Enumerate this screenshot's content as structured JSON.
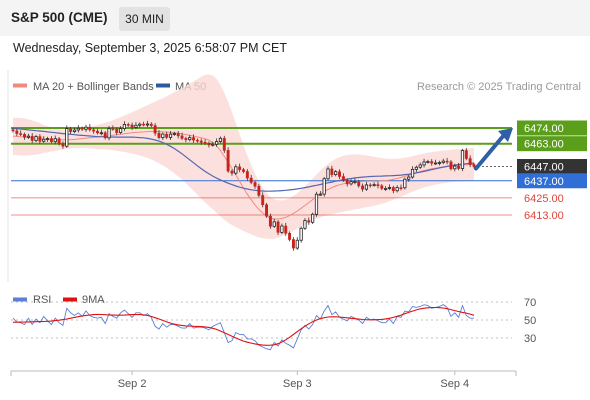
{
  "header": {
    "title": "S&P 500 (CME)",
    "interval": "30 MIN",
    "timestamp": "Wednesday, September 3, 2025 6:58:07 PM CET"
  },
  "chart_data": [
    {
      "type": "candlestick",
      "legend": [
        {
          "label": "MA 20 + Bollinger Bands",
          "color": "#f08a80"
        },
        {
          "label": "MA 50",
          "color": "#2c5aa0"
        }
      ],
      "credit": "Research © 2025 Trading Central",
      "ylim": [
        6385,
        6482
      ],
      "levels": [
        {
          "label": "6474.00",
          "value": 6474.0,
          "kind": "resistance",
          "color": "#5a9e1a"
        },
        {
          "label": "6463.00",
          "value": 6463.0,
          "kind": "resistance",
          "color": "#5a9e1a"
        },
        {
          "label": "6447.00",
          "value": 6447.0,
          "kind": "last-price",
          "color": "#333333"
        },
        {
          "label": "6437.00",
          "value": 6437.0,
          "kind": "pivot",
          "color": "#2f6fd6"
        },
        {
          "label": "6425.00",
          "value": 6425.0,
          "kind": "support",
          "color": "#e0453a"
        },
        {
          "label": "6413.00",
          "value": 6413.0,
          "kind": "support",
          "color": "#e0453a"
        }
      ],
      "close": [
        6472.0,
        6470.1,
        6469.6,
        6467.5,
        6468.3,
        6465.2,
        6468.0,
        6464.7,
        6466.1,
        6466.6,
        6464.4,
        6466.5,
        6462.9,
        6461.2,
        6473.6,
        6471.5,
        6472.6,
        6473.8,
        6473.1,
        6474.6,
        6472.7,
        6471.8,
        6470.6,
        6470.7,
        6467.1,
        6473.6,
        6473.3,
        6470.8,
        6473.6,
        6476.5,
        6476.1,
        6474.4,
        6475.9,
        6476.7,
        6476.4,
        6476.8,
        6475.7,
        6470.4,
        6467.3,
        6469.7,
        6467.4,
        6469.7,
        6470.2,
        6468.5,
        6466.7,
        6465.8,
        6467.3,
        6465.5,
        6464.9,
        6464.0,
        6463.3,
        6462.1,
        6462.6,
        6464.5,
        6466.8,
        6458.3,
        6443.8,
        6442.3,
        6446.8,
        6444.8,
        6443.5,
        6438.9,
        6435.8,
        6433.2,
        6426.7,
        6420.2,
        6412.2,
        6405.1,
        6408.2,
        6400.8,
        6405.3,
        6400.2,
        6395.8,
        6389.8,
        6395.3,
        6403.7,
        6409.1,
        6407.9,
        6413.5,
        6427.6,
        6427.6,
        6438.4,
        6445.3,
        6441.3,
        6443.4,
        6440.0,
        6437.5,
        6434.8,
        6436.4,
        6436.4,
        6433.4,
        6431.1,
        6434.1,
        6434.0,
        6434.3,
        6433.5,
        6431.6,
        6431.6,
        6432.3,
        6430.0,
        6432.2,
        6432.1,
        6438.1,
        6439.6,
        6445.0,
        6446.5,
        6448.1,
        6450.2,
        6450.5,
        6449.3,
        6449.5,
        6449.8,
        6450.8,
        6450.3,
        6445.4,
        6447.3,
        6445.6,
        6458.2,
        6452.6,
        6448.4,
        6447.0
      ],
      "ma20": [
        6468.3,
        6468.1,
        6467.9,
        6467.7,
        6467.4,
        6467.1,
        6466.9,
        6466.6,
        6466.3,
        6466.1,
        6466.0,
        6465.8,
        6465.7,
        6465.7,
        6465.7,
        6465.8,
        6466.0,
        6466.3,
        6466.6,
        6466.9,
        6467.1,
        6467.4,
        6467.7,
        6468.0,
        6468.3,
        6468.6,
        6468.9,
        6469.3,
        6469.6,
        6470.0,
        6470.3,
        6470.6,
        6470.9,
        6471.1,
        6471.3,
        6471.5,
        6471.6,
        6471.6,
        6471.5,
        6471.3,
        6471.2,
        6470.9,
        6470.6,
        6470.3,
        6469.9,
        6469.4,
        6468.9,
        6468.3,
        6467.7,
        6467.1,
        6466.5,
        6465.5,
        6463.9,
        6461.5,
        6458.2,
        6454.1,
        6450.0,
        6445.6,
        6441.1,
        6436.5,
        6431.9,
        6427.6,
        6423.7,
        6420.1,
        6417.0,
        6414.4,
        6412.4,
        6411.0,
        6410.2,
        6410.2,
        6410.6,
        6411.4,
        6412.6,
        6414.1,
        6415.8,
        6417.7,
        6419.7,
        6421.7,
        6423.8,
        6425.8,
        6427.7,
        6429.4,
        6430.9,
        6432.2,
        6433.3,
        6434.2,
        6434.9,
        6435.5,
        6435.9,
        6436.2,
        6436.4,
        6436.5,
        6436.6,
        6436.6,
        6436.7,
        6436.8,
        6436.9,
        6437.1,
        6437.5,
        6438.0,
        6438.6,
        6439.3,
        6440.1,
        6440.9,
        6441.8,
        6442.7,
        6443.5,
        6444.2,
        6444.8,
        6445.4,
        6445.9,
        6446.3,
        6446.7,
        6447.0,
        6447.3,
        6447.6,
        6447.8,
        6448.0,
        6448.2,
        6448.4,
        6448.6
      ],
      "ma50": [
        6473.8,
        6473.5,
        6473.3,
        6473.0,
        6472.7,
        6472.4,
        6472.1,
        6471.9,
        6471.6,
        6471.3,
        6471.0,
        6470.7,
        6470.4,
        6470.1,
        6469.8,
        6469.6,
        6469.3,
        6469.0,
        6468.8,
        6468.6,
        6468.4,
        6468.2,
        6468.0,
        6467.9,
        6467.8,
        6467.7,
        6467.7,
        6467.6,
        6467.6,
        6467.6,
        6467.6,
        6467.6,
        6467.5,
        6467.3,
        6467.1,
        6466.7,
        6466.2,
        6465.6,
        6464.8,
        6463.8,
        6462.6,
        6461.2,
        6459.6,
        6457.8,
        6455.9,
        6453.8,
        6451.7,
        6449.6,
        6447.5,
        6445.5,
        6443.6,
        6441.9,
        6440.3,
        6438.9,
        6437.6,
        6436.4,
        6435.3,
        6434.3,
        6433.3,
        6432.5,
        6431.8,
        6431.2,
        6430.7,
        6430.3,
        6430.0,
        6429.8,
        6429.7,
        6429.7,
        6429.8,
        6429.9,
        6430.1,
        6430.3,
        6430.6,
        6430.9,
        6431.3,
        6431.7,
        6432.2,
        6432.7,
        6433.3,
        6433.8,
        6434.4,
        6435.0,
        6435.6,
        6436.1,
        6436.7,
        6437.2,
        6437.7,
        6438.2,
        6438.6,
        6439.0,
        6439.3,
        6439.6,
        6439.8,
        6440.0,
        6440.1,
        6440.2,
        6440.3,
        6440.4,
        6440.5,
        6440.6,
        6440.8,
        6441.0,
        6441.3,
        6441.6,
        6442.0,
        6442.5,
        6443.0,
        6443.6,
        6444.2,
        6444.8,
        6445.4,
        6446.0,
        6446.6,
        6447.1,
        6447.6,
        6448.0,
        6448.4,
        6448.7,
        6449.0,
        6449.2,
        6449.4
      ],
      "bands_halfwidth": [
        13.0,
        13.2,
        13.1,
        13.2,
        12.6,
        12.2,
        11.5,
        11.0,
        9.6,
        9.3,
        8.2,
        8.0,
        7.1,
        7.0,
        6.1,
        6.3,
        6.0,
        6.5,
        6.5,
        6.9,
        7.5,
        8.0,
        8.5,
        8.9,
        9.4,
        9.9,
        10.5,
        11.3,
        12.0,
        12.8,
        13.6,
        14.5,
        15.4,
        16.4,
        17.4,
        18.5,
        19.7,
        20.9,
        22.2,
        23.6,
        25.1,
        26.7,
        28.4,
        30.2,
        32.1,
        34.1,
        36.2,
        38.4,
        40.6,
        42.8,
        44.7,
        46.1,
        46.9,
        46.9,
        46.1,
        44.5,
        42.3,
        39.6,
        36.5,
        33.3,
        30.1,
        27.1,
        24.3,
        21.8,
        19.6,
        17.7,
        16.1,
        14.8,
        13.8,
        13.1,
        12.6,
        12.3,
        12.2,
        12.3,
        12.5,
        12.9,
        13.4,
        14.0,
        14.7,
        15.5,
        16.4,
        17.2,
        18.0,
        18.6,
        19.1,
        19.4,
        19.6,
        19.6,
        19.5,
        19.3,
        19.0,
        18.6,
        18.2,
        17.7,
        17.2,
        16.6,
        16.1,
        15.5,
        14.9,
        14.4,
        13.9,
        13.5,
        13.1,
        12.8,
        12.5,
        12.3,
        12.1,
        11.9,
        11.8,
        11.7,
        11.6,
        11.5,
        11.5,
        11.4,
        11.4,
        11.4,
        11.3,
        11.3,
        11.3,
        11.3,
        11.3
      ],
      "xticks": [
        {
          "label": "Sep 2",
          "index": 31
        },
        {
          "label": "Sep 3",
          "index": 74
        },
        {
          "label": "Sep 4",
          "index": 115
        }
      ],
      "forecast_arrow": {
        "from": 6447.0,
        "to": 6474.0
      }
    },
    {
      "type": "line",
      "legend": [
        {
          "label": "RSI",
          "color": "#5b7fd6"
        },
        {
          "label": "9MA",
          "color": "#e01010"
        }
      ],
      "ylim": [
        20,
        80
      ],
      "ytick_labels": [
        "70",
        "50",
        "30"
      ],
      "ytick_values": [
        70,
        50,
        30
      ],
      "rsi": [
        52,
        48,
        47,
        45,
        52,
        45,
        51,
        47,
        54,
        49,
        45,
        52,
        47,
        44,
        63,
        58,
        55,
        58,
        54,
        60,
        55,
        53,
        52,
        53,
        46,
        57,
        54,
        52,
        58,
        61,
        57,
        53,
        58,
        58,
        55,
        57,
        53,
        43,
        40,
        46,
        42,
        45,
        45,
        43,
        41,
        41,
        46,
        41,
        42,
        42,
        41,
        39,
        43,
        45,
        47,
        36,
        25,
        27,
        36,
        34,
        34,
        29,
        29,
        27,
        22,
        20,
        18,
        17,
        25,
        21,
        28,
        24,
        22,
        19,
        29,
        39,
        44,
        40,
        45,
        55,
        51,
        60,
        66,
        56,
        59,
        53,
        51,
        49,
        54,
        52,
        50,
        46,
        53,
        50,
        51,
        49,
        47,
        47,
        51,
        46,
        54,
        53,
        60,
        59,
        65,
        64,
        65,
        67,
        66,
        63,
        64,
        65,
        67,
        64,
        54,
        58,
        53,
        66,
        55,
        52,
        52
      ],
      "ma9": [
        47.4,
        47.6,
        47.7,
        47.8,
        47.9,
        48.0,
        48.1,
        48.2,
        48.3,
        48.6,
        48.8,
        49.3,
        49.8,
        50.5,
        51.1,
        52.0,
        52.9,
        53.7,
        54.5,
        55.1,
        55.6,
        56.0,
        56.2,
        56.1,
        55.9,
        55.6,
        55.4,
        55.3,
        55.3,
        55.5,
        55.8,
        56.0,
        56.1,
        56.0,
        55.7,
        55.0,
        53.9,
        52.6,
        51.1,
        49.5,
        47.9,
        46.5,
        45.4,
        44.6,
        44.0,
        43.5,
        43.2,
        43.0,
        42.9,
        42.7,
        42.3,
        41.8,
        40.8,
        39.5,
        37.8,
        35.9,
        34.0,
        32.0,
        30.0,
        28.2,
        26.6,
        25.3,
        24.3,
        23.4,
        22.7,
        22.1,
        21.9,
        22.0,
        22.5,
        23.7,
        25.6,
        28.0,
        30.8,
        33.9,
        37.1,
        40.2,
        43.2,
        45.8,
        48.1,
        50.0,
        51.5,
        52.6,
        53.3,
        53.6,
        53.6,
        53.3,
        52.9,
        52.4,
        51.9,
        51.4,
        51.0,
        50.6,
        50.3,
        50.2,
        50.2,
        50.4,
        50.7,
        51.2,
        51.9,
        52.9,
        54.1,
        55.5,
        57.0,
        58.5,
        59.9,
        61.2,
        62.3,
        63.1,
        63.6,
        63.9,
        63.9,
        63.7,
        63.3,
        62.6,
        61.6,
        60.4,
        59.4,
        58.5,
        57.7,
        56.5,
        55.2
      ],
      "xticks": [
        {
          "label": "Sep 2",
          "index": 31
        },
        {
          "label": "Sep 3",
          "index": 74
        },
        {
          "label": "Sep 4",
          "index": 115
        }
      ]
    }
  ]
}
